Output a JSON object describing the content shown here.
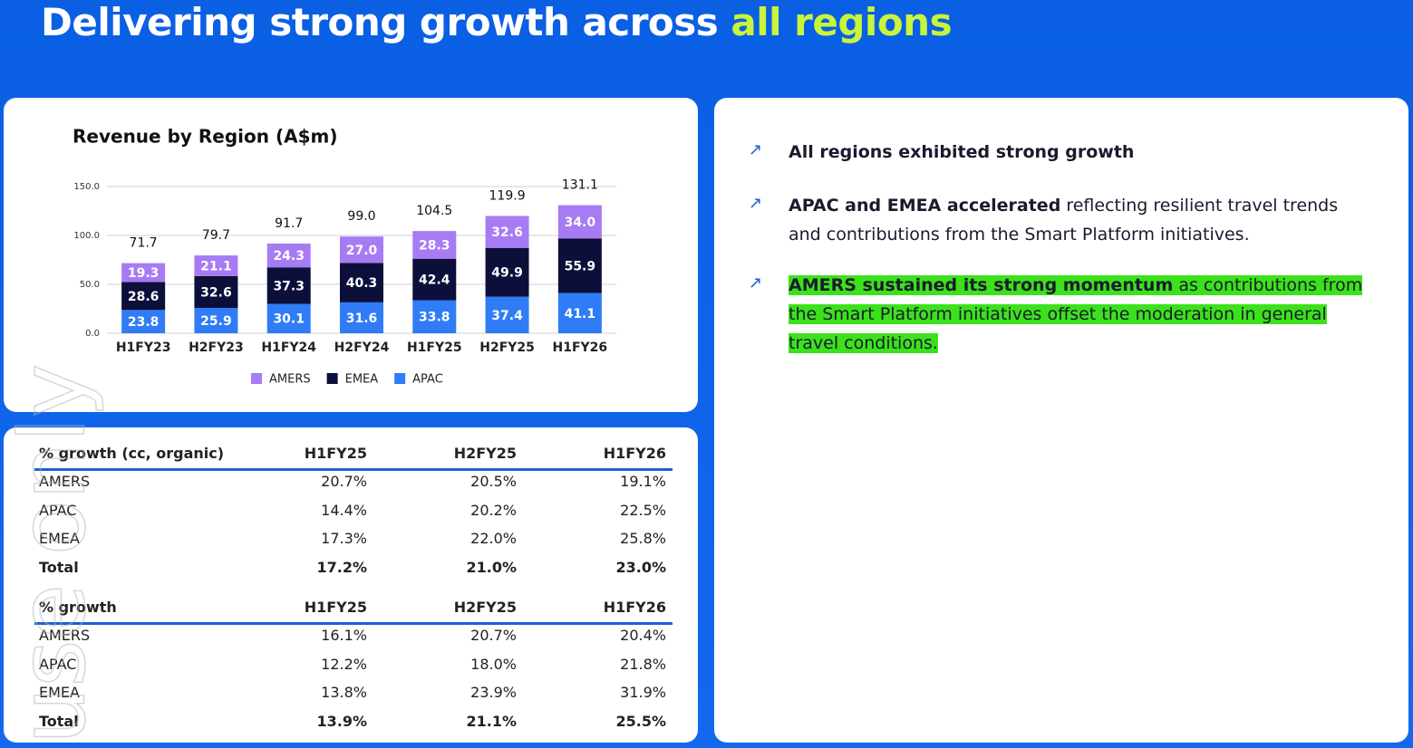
{
  "header": {
    "title": "Delivering strong growth across",
    "title_highlight": "all regions"
  },
  "watermark": "use only",
  "chart_data": {
    "type": "stacked_bar",
    "title": "Revenue by Region (A$m)",
    "categories": [
      "H1FY23",
      "H2FY23",
      "H1FY24",
      "H2FY24",
      "H1FY25",
      "H2FY25",
      "H1FY26"
    ],
    "series": [
      {
        "name": "AMERS",
        "color": "#a77bf3",
        "values": [
          19.3,
          21.1,
          24.3,
          27.0,
          28.3,
          32.6,
          34.0
        ],
        "value_labels": [
          "19.3",
          "21.1",
          "24.3",
          "27.0",
          "28.3",
          "32.6",
          "34.0"
        ]
      },
      {
        "name": "EMEA",
        "color": "#0b0f3a",
        "values": [
          28.6,
          32.6,
          37.3,
          40.3,
          42.4,
          49.9,
          55.9
        ],
        "value_labels": [
          "28.6",
          "32.6",
          "37.3",
          "40.3",
          "42.4",
          "49.9",
          "55.9"
        ]
      },
      {
        "name": "APAC",
        "color": "#2f7cf6",
        "values": [
          23.8,
          25.9,
          30.1,
          31.6,
          33.8,
          37.4,
          41.1
        ],
        "value_labels": [
          "23.8",
          "25.9",
          "30.1",
          "31.6",
          "33.8",
          "37.4",
          "41.1"
        ]
      }
    ],
    "totals": {
      "values": [
        71.7,
        79.7,
        91.7,
        99.0,
        104.5,
        119.9,
        131.1
      ],
      "value_labels": [
        "71.7",
        "79.7",
        "91.7",
        "99.0",
        "104.5",
        "119.9",
        "131.1"
      ]
    },
    "ylim": [
      0,
      150
    ],
    "yticks": [
      {
        "value": 0,
        "label": "0.0"
      },
      {
        "value": 50,
        "label": "50.0"
      },
      {
        "value": 100,
        "label": "100.0"
      },
      {
        "value": 150,
        "label": "150.0"
      }
    ],
    "grid": true,
    "legend": "bottom"
  },
  "tables": [
    {
      "columns": [
        "% growth (cc, organic)",
        "H1FY25",
        "H2FY25",
        "H1FY26"
      ],
      "rows": [
        [
          "AMERS",
          "20.7%",
          "20.5%",
          "19.1%"
        ],
        [
          "APAC",
          "14.4%",
          "20.2%",
          "22.5%"
        ],
        [
          "EMEA",
          "17.3%",
          "22.0%",
          "25.8%"
        ],
        [
          "Total",
          "17.2%",
          "21.0%",
          "23.0%"
        ]
      ]
    },
    {
      "columns": [
        "% growth",
        "H1FY25",
        "H2FY25",
        "H1FY26"
      ],
      "rows": [
        [
          "AMERS",
          "16.1%",
          "20.7%",
          "20.4%"
        ],
        [
          "APAC",
          "12.2%",
          "18.0%",
          "21.8%"
        ],
        [
          "EMEA",
          "13.8%",
          "23.9%",
          "31.9%"
        ],
        [
          "Total",
          "13.9%",
          "21.1%",
          "25.5%"
        ]
      ]
    }
  ],
  "bullets": [
    {
      "bold": "All regions exhibited strong growth"
    },
    {
      "bold": "APAC and EMEA accelerated",
      "text": "reflecting resilient travel trends and contributions from the Smart Platform initiatives."
    },
    {
      "bold": "AMERS sustained its strong momentum",
      "text": "as contributions from the Smart Platform initiatives offset the moderation in general travel conditions."
    }
  ]
}
